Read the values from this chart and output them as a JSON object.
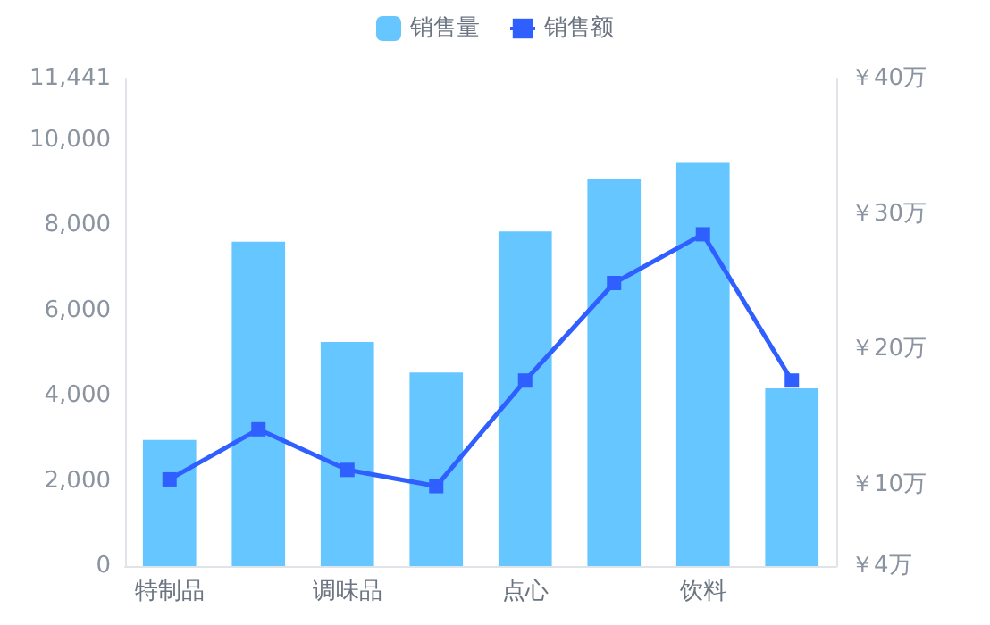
{
  "chart_data": {
    "type": "bar",
    "categories": [
      "特制品",
      null,
      "调味品",
      null,
      "点心",
      null,
      "饮料",
      null
    ],
    "series": [
      {
        "name": "销售量",
        "color": "#66c6ff",
        "values": [
          2960,
          7610,
          5260,
          4540,
          7850,
          9080,
          9460,
          4170
        ]
      },
      {
        "name": "销售额",
        "type": "line",
        "axis": "y2",
        "color": "#2f5fff",
        "values": [
          10.4,
          14.1,
          11.1,
          9.9,
          17.7,
          24.9,
          28.5,
          17.7
        ]
      }
    ],
    "ylim": [
      0,
      11441
    ],
    "yticks": [
      {
        "value": 0,
        "label": "0"
      },
      {
        "value": 2000,
        "label": "2,000"
      },
      {
        "value": 4000,
        "label": "4,000"
      },
      {
        "value": 6000,
        "label": "6,000"
      },
      {
        "value": 8000,
        "label": "8,000"
      },
      {
        "value": 10000,
        "label": "10,000"
      },
      {
        "value": 11441,
        "label": "11,441"
      }
    ],
    "y2lim": [
      4,
      40
    ],
    "y2ticks": [
      {
        "value": 4,
        "label": "￥4万"
      },
      {
        "value": 10,
        "label": "￥10万"
      },
      {
        "value": 20,
        "label": "￥20万"
      },
      {
        "value": 30,
        "label": "￥30万"
      },
      {
        "value": 40,
        "label": "￥40万"
      }
    ],
    "legend": "top",
    "grid": false,
    "marker": "square"
  }
}
